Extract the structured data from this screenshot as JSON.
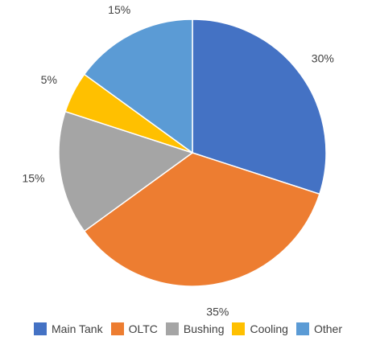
{
  "chart_data": {
    "type": "pie",
    "title": "",
    "categories": [
      "Main Tank",
      "OLTC",
      "Bushing",
      "Cooling",
      "Other"
    ],
    "values": [
      30,
      35,
      15,
      5,
      15
    ],
    "labels": [
      "30%",
      "35%",
      "15%",
      "5%",
      "15%"
    ],
    "colors": [
      "#4472C4",
      "#ED7D31",
      "#A5A5A5",
      "#FFC000",
      "#5B9BD5"
    ],
    "start_angle": "12 o'clock",
    "direction": "clockwise",
    "legend_position": "bottom"
  }
}
